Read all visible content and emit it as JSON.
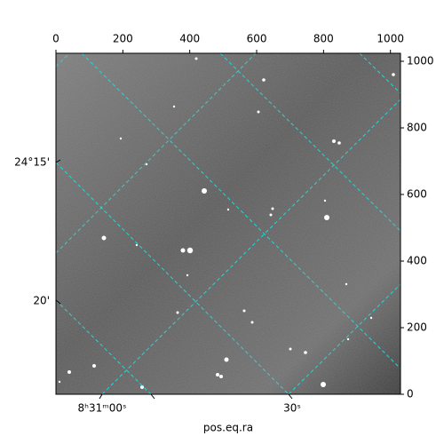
{
  "chart_data": {
    "type": "image",
    "xlim": [
      0,
      1030
    ],
    "ylim": [
      0,
      1024
    ],
    "xticks": [
      0,
      200,
      400,
      600,
      800,
      1000
    ],
    "yticks": [
      0,
      200,
      400,
      600,
      800,
      1000
    ],
    "dec_ticks": [
      "24°15'",
      "20'"
    ],
    "ra_ticks": [
      "8ʰ31ᵐ00ˢ",
      "30ˢ"
    ],
    "xlabel": "pos.eq.ra"
  }
}
